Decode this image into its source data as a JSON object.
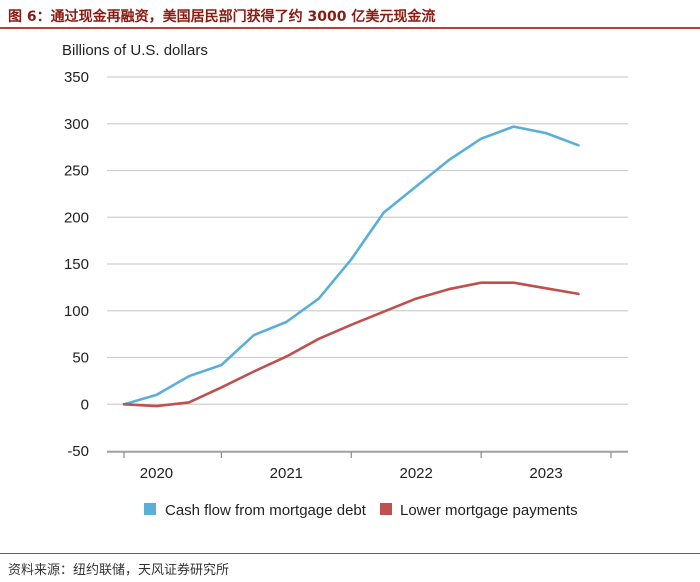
{
  "figure": {
    "title": "图 6：通过现金再融资，美国居民部门获得了约 3000 亿美元现金流",
    "source": "资料来源：纽约联储，天风证券研究所"
  },
  "chart_data": {
    "type": "line",
    "ylabel": "Billions of U.S. dollars",
    "ylim": [
      -50,
      350
    ],
    "yticks": [
      "-50",
      "0",
      "50",
      "100",
      "150",
      "200",
      "250",
      "300",
      "350"
    ],
    "xticks": [
      "2020",
      "2021",
      "2022",
      "2023"
    ],
    "xlim": [
      2019.75,
      2023.5
    ],
    "grid": true,
    "legend_position": "bottom",
    "x": [
      2019.75,
      2020.0,
      2020.25,
      2020.5,
      2020.75,
      2021.0,
      2021.25,
      2021.5,
      2021.75,
      2022.0,
      2022.25,
      2022.5,
      2022.75,
      2023.0,
      2023.25
    ],
    "series": [
      {
        "name": "Cash flow from mortgage debt",
        "color": "#5aafd9",
        "values": [
          0,
          10,
          30,
          42,
          74,
          88,
          113,
          155,
          205,
          233,
          261,
          284,
          297,
          290,
          277
        ]
      },
      {
        "name": "Lower mortgage payments",
        "color": "#c0504d",
        "values": [
          0,
          -2,
          2,
          18,
          35,
          51,
          70,
          85,
          99,
          113,
          123,
          130,
          130,
          124,
          118
        ]
      }
    ]
  }
}
